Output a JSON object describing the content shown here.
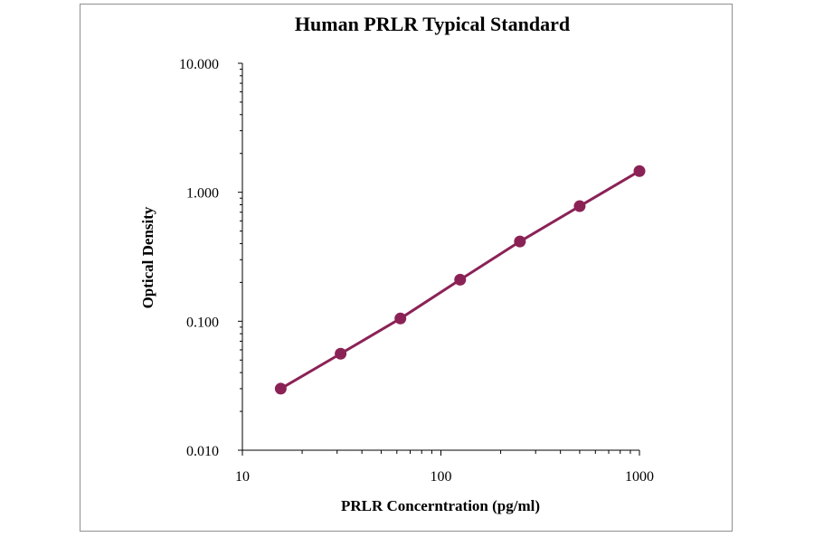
{
  "chart_data": {
    "type": "line",
    "title": "Human PRLR Typical Standard",
    "xlabel": "PRLR Concerntration (pg/ml)",
    "ylabel": "Optical Density",
    "x_scale": "log",
    "y_scale": "log",
    "xlim": [
      10,
      1000
    ],
    "ylim": [
      0.01,
      10
    ],
    "x_ticks": [
      "10",
      "100",
      "1000"
    ],
    "y_ticks": [
      "10.000",
      "1.000",
      "0.100",
      "0.010"
    ],
    "grid": false,
    "legend": "none",
    "series": [
      {
        "x": [
          15.6,
          31.25,
          62.5,
          125,
          250,
          500,
          1000
        ],
        "y": [
          0.03,
          0.056,
          0.105,
          0.21,
          0.415,
          0.78,
          1.46
        ]
      }
    ],
    "colors": {
      "series": "#8b2256",
      "marker": "#8b2256",
      "axis": "#000000",
      "frame": "#8f8f8f"
    }
  }
}
